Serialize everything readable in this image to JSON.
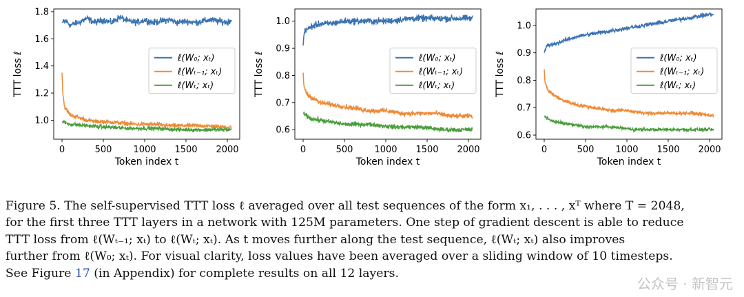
{
  "chart_data": [
    {
      "type": "line",
      "xlabel": "Token index t",
      "ylabel": "TTT loss ℓ",
      "xlim": [
        -100,
        2150
      ],
      "ylim": [
        0.86,
        1.82
      ],
      "xticks": [
        0,
        500,
        1000,
        1500,
        2000
      ],
      "yticks": [
        1.0,
        1.2,
        1.4,
        1.6,
        1.8
      ],
      "ytick_labels": [
        "1.0",
        "1.2",
        "1.4",
        "1.6",
        "1.8"
      ],
      "legend_position": "center-right",
      "series": [
        {
          "name": "ℓ(W₀; xₜ)",
          "color": "#3a73b2",
          "points": [
            [
              0,
              1.72
            ],
            [
              50,
              1.73
            ],
            [
              100,
              1.7
            ],
            [
              200,
              1.72
            ],
            [
              300,
              1.75
            ],
            [
              400,
              1.72
            ],
            [
              500,
              1.74
            ],
            [
              600,
              1.72
            ],
            [
              700,
              1.76
            ],
            [
              800,
              1.73
            ],
            [
              900,
              1.72
            ],
            [
              1000,
              1.74
            ],
            [
              1100,
              1.72
            ],
            [
              1200,
              1.73
            ],
            [
              1300,
              1.74
            ],
            [
              1400,
              1.72
            ],
            [
              1500,
              1.73
            ],
            [
              1600,
              1.72
            ],
            [
              1700,
              1.73
            ],
            [
              1800,
              1.74
            ],
            [
              1900,
              1.73
            ],
            [
              2000,
              1.72
            ],
            [
              2048,
              1.74
            ]
          ]
        },
        {
          "name": "ℓ(Wₜ₋₁; xₜ)",
          "color": "#ef8a35",
          "points": [
            [
              0,
              1.35
            ],
            [
              10,
              1.2
            ],
            [
              30,
              1.1
            ],
            [
              60,
              1.07
            ],
            [
              100,
              1.04
            ],
            [
              200,
              1.02
            ],
            [
              300,
              1.0
            ],
            [
              400,
              0.99
            ],
            [
              500,
              0.99
            ],
            [
              700,
              0.98
            ],
            [
              900,
              0.97
            ],
            [
              1100,
              0.97
            ],
            [
              1300,
              0.96
            ],
            [
              1500,
              0.96
            ],
            [
              1700,
              0.96
            ],
            [
              1900,
              0.95
            ],
            [
              2048,
              0.95
            ]
          ]
        },
        {
          "name": "ℓ(Wₜ; xₜ)",
          "color": "#4a9e3d",
          "points": [
            [
              0,
              0.99
            ],
            [
              100,
              0.97
            ],
            [
              300,
              0.96
            ],
            [
              500,
              0.95
            ],
            [
              800,
              0.94
            ],
            [
              1100,
              0.94
            ],
            [
              1400,
              0.93
            ],
            [
              1700,
              0.93
            ],
            [
              2048,
              0.93
            ]
          ]
        }
      ]
    },
    {
      "type": "line",
      "xlabel": "Token index t",
      "ylabel": "TTT loss ℓ",
      "xlim": [
        -100,
        2150
      ],
      "ylim": [
        0.565,
        1.045
      ],
      "xticks": [
        0,
        500,
        1000,
        1500,
        2000
      ],
      "yticks": [
        0.6,
        0.7,
        0.8,
        0.9,
        1.0
      ],
      "ytick_labels": [
        "0.6",
        "0.7",
        "0.8",
        "0.9",
        "1.0"
      ],
      "legend_position": "center-right",
      "series": [
        {
          "name": "ℓ(W₀; xₜ)",
          "color": "#3a73b2",
          "points": [
            [
              0,
              0.91
            ],
            [
              10,
              0.95
            ],
            [
              30,
              0.97
            ],
            [
              60,
              0.97
            ],
            [
              100,
              0.98
            ],
            [
              200,
              0.99
            ],
            [
              300,
              0.99
            ],
            [
              500,
              1.0
            ],
            [
              700,
              1.0
            ],
            [
              1000,
              1.0
            ],
            [
              1300,
              1.01
            ],
            [
              1600,
              1.01
            ],
            [
              1900,
              1.01
            ],
            [
              2048,
              1.01
            ]
          ]
        },
        {
          "name": "ℓ(Wₜ₋₁; xₜ)",
          "color": "#ef8a35",
          "points": [
            [
              0,
              0.81
            ],
            [
              10,
              0.76
            ],
            [
              50,
              0.73
            ],
            [
              100,
              0.72
            ],
            [
              200,
              0.7
            ],
            [
              400,
              0.69
            ],
            [
              600,
              0.68
            ],
            [
              800,
              0.67
            ],
            [
              1000,
              0.67
            ],
            [
              1200,
              0.66
            ],
            [
              1400,
              0.66
            ],
            [
              1600,
              0.66
            ],
            [
              1800,
              0.65
            ],
            [
              2048,
              0.65
            ]
          ]
        },
        {
          "name": "ℓ(Wₜ; xₜ)",
          "color": "#4a9e3d",
          "points": [
            [
              0,
              0.66
            ],
            [
              100,
              0.64
            ],
            [
              300,
              0.63
            ],
            [
              500,
              0.62
            ],
            [
              800,
              0.62
            ],
            [
              1100,
              0.61
            ],
            [
              1400,
              0.61
            ],
            [
              1700,
              0.6
            ],
            [
              2048,
              0.6
            ]
          ]
        }
      ]
    },
    {
      "type": "line",
      "xlabel": "Token index t",
      "ylabel": "TTT loss ℓ",
      "xlim": [
        -100,
        2150
      ],
      "ylim": [
        0.585,
        1.06
      ],
      "xticks": [
        0,
        500,
        1000,
        1500,
        2000
      ],
      "yticks": [
        0.6,
        0.7,
        0.8,
        0.9,
        1.0
      ],
      "ytick_labels": [
        "0.6",
        "0.7",
        "0.8",
        "0.9",
        "1.0"
      ],
      "legend_position": "center-right",
      "series": [
        {
          "name": "ℓ(W₀; xₜ)",
          "color": "#3a73b2",
          "points": [
            [
              0,
              0.9
            ],
            [
              20,
              0.92
            ],
            [
              60,
              0.93
            ],
            [
              100,
              0.93
            ],
            [
              200,
              0.94
            ],
            [
              400,
              0.96
            ],
            [
              600,
              0.97
            ],
            [
              800,
              0.98
            ],
            [
              1000,
              0.99
            ],
            [
              1200,
              1.0
            ],
            [
              1400,
              1.01
            ],
            [
              1600,
              1.02
            ],
            [
              1800,
              1.03
            ],
            [
              2000,
              1.04
            ],
            [
              2048,
              1.04
            ]
          ]
        },
        {
          "name": "ℓ(Wₜ₋₁; xₜ)",
          "color": "#ef8a35",
          "points": [
            [
              0,
              0.84
            ],
            [
              10,
              0.79
            ],
            [
              50,
              0.76
            ],
            [
              100,
              0.75
            ],
            [
              200,
              0.73
            ],
            [
              400,
              0.71
            ],
            [
              600,
              0.7
            ],
            [
              800,
              0.69
            ],
            [
              1000,
              0.69
            ],
            [
              1200,
              0.68
            ],
            [
              1400,
              0.68
            ],
            [
              1600,
              0.68
            ],
            [
              1800,
              0.68
            ],
            [
              2048,
              0.67
            ]
          ]
        },
        {
          "name": "ℓ(Wₜ; xₜ)",
          "color": "#4a9e3d",
          "points": [
            [
              0,
              0.67
            ],
            [
              100,
              0.65
            ],
            [
              300,
              0.64
            ],
            [
              500,
              0.63
            ],
            [
              800,
              0.63
            ],
            [
              1100,
              0.62
            ],
            [
              1400,
              0.62
            ],
            [
              1700,
              0.62
            ],
            [
              2048,
              0.62
            ]
          ]
        }
      ]
    }
  ],
  "caption": {
    "lines": [
      "Figure 5. The self-supervised TTT loss ℓ averaged over all test sequences of the form x₁, . . . , xᵀ where T = 2048,",
      "for the first three TTT layers in a network with 125M parameters. One step of gradient descent is able to reduce",
      "TTT loss from ℓ(Wₜ₋₁; xₜ) to ℓ(Wₜ; xₜ). As t moves further along the test sequence, ℓ(Wₜ; xₜ) also improves",
      "further from ℓ(W₀; xₜ). For visual clarity, loss values have been averaged over a sliding window of 10 timesteps."
    ],
    "last_line_before": "See Figure ",
    "figure_ref": "17",
    "last_line_after": " (in Appendix) for complete results on all 12 layers."
  },
  "watermark": "公众号 · 新智元"
}
